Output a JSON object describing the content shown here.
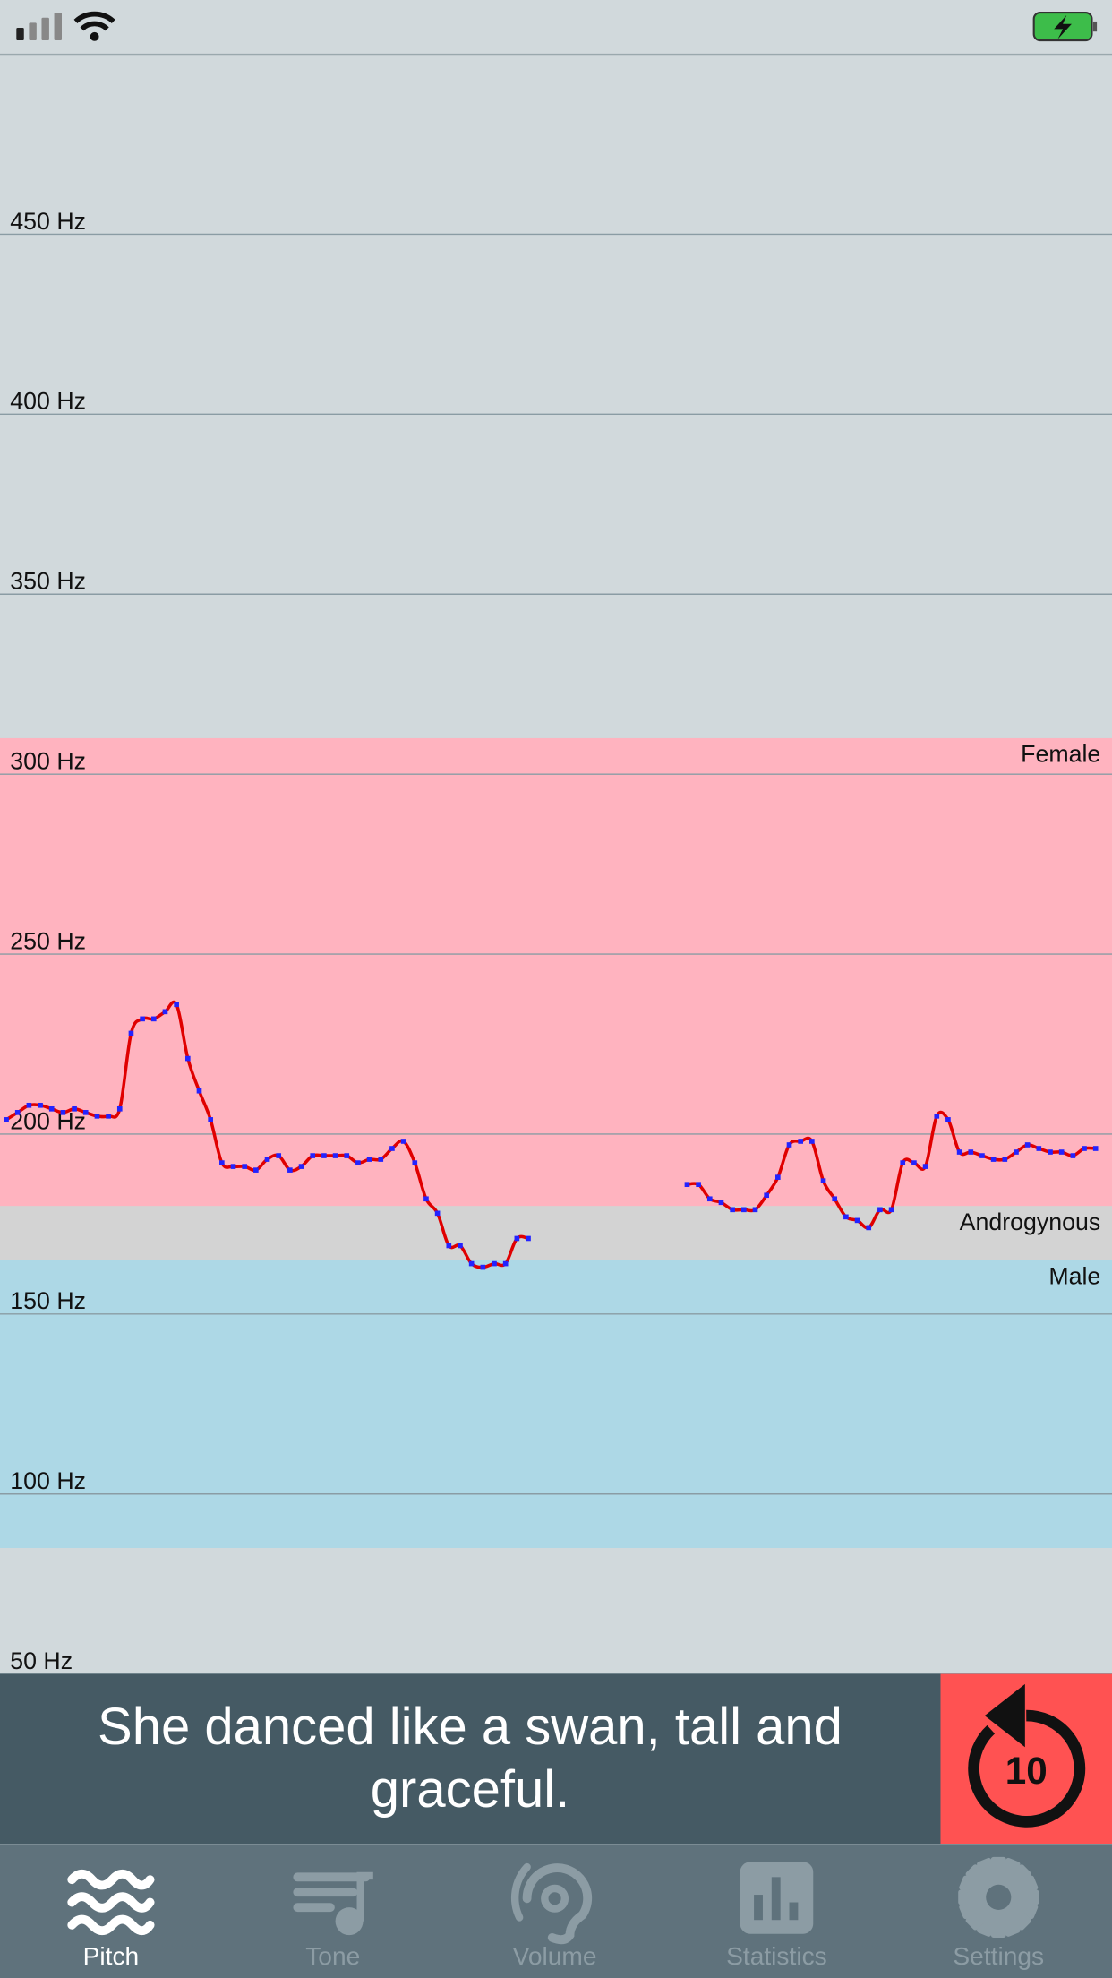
{
  "chart_data": {
    "type": "line",
    "ylim": [
      50,
      500
    ],
    "yticks": [
      {
        "value": 50,
        "label": "50 Hz"
      },
      {
        "value": 100,
        "label": "100 Hz"
      },
      {
        "value": 150,
        "label": "150 Hz"
      },
      {
        "value": 200,
        "label": "200 Hz"
      },
      {
        "value": 250,
        "label": "250 Hz"
      },
      {
        "value": 300,
        "label": "300 Hz"
      },
      {
        "value": 350,
        "label": "350 Hz"
      },
      {
        "value": 400,
        "label": "400 Hz"
      },
      {
        "value": 450,
        "label": "450 Hz"
      }
    ],
    "grid": true,
    "zones": [
      {
        "name": "Female",
        "range": [
          180,
          310
        ],
        "color": "#ffb3bf"
      },
      {
        "name": "Androgynous",
        "range": [
          165,
          180
        ],
        "color": "#d3d3d3"
      },
      {
        "name": "Male",
        "range": [
          85,
          165
        ],
        "color": "#add8e6"
      }
    ],
    "series": [
      {
        "color": "#e00000",
        "marker_color": "#2323ff",
        "values": [
          204,
          206,
          208,
          208,
          207,
          206,
          207,
          206,
          205,
          205,
          207,
          228,
          232,
          232,
          234,
          236,
          221,
          212,
          204,
          192,
          191,
          191,
          190,
          193,
          194,
          190,
          191,
          194,
          194,
          194,
          194,
          192,
          193,
          193,
          196,
          198,
          192,
          182,
          178,
          169,
          169,
          164,
          163,
          164,
          164,
          171,
          171,
          null,
          null,
          null,
          null,
          null,
          null,
          null,
          null,
          null,
          null,
          null,
          null,
          null,
          186,
          186,
          182,
          181,
          179,
          179,
          179,
          183,
          188,
          197,
          198,
          198,
          187,
          182,
          177,
          176,
          174,
          179,
          179,
          192,
          192,
          191,
          205,
          204,
          195,
          195,
          194,
          193,
          193,
          195,
          197,
          196,
          195,
          195,
          194,
          196,
          196
        ]
      }
    ]
  },
  "prompt": {
    "text": "She danced like a swan, tall and graceful."
  },
  "replay_button": {
    "label": "10"
  },
  "tabs": [
    {
      "label": "Pitch",
      "active": true
    },
    {
      "label": "Tone",
      "active": false
    },
    {
      "label": "Volume",
      "active": false
    },
    {
      "label": "Statistics",
      "active": false
    },
    {
      "label": "Settings",
      "active": false
    }
  ]
}
